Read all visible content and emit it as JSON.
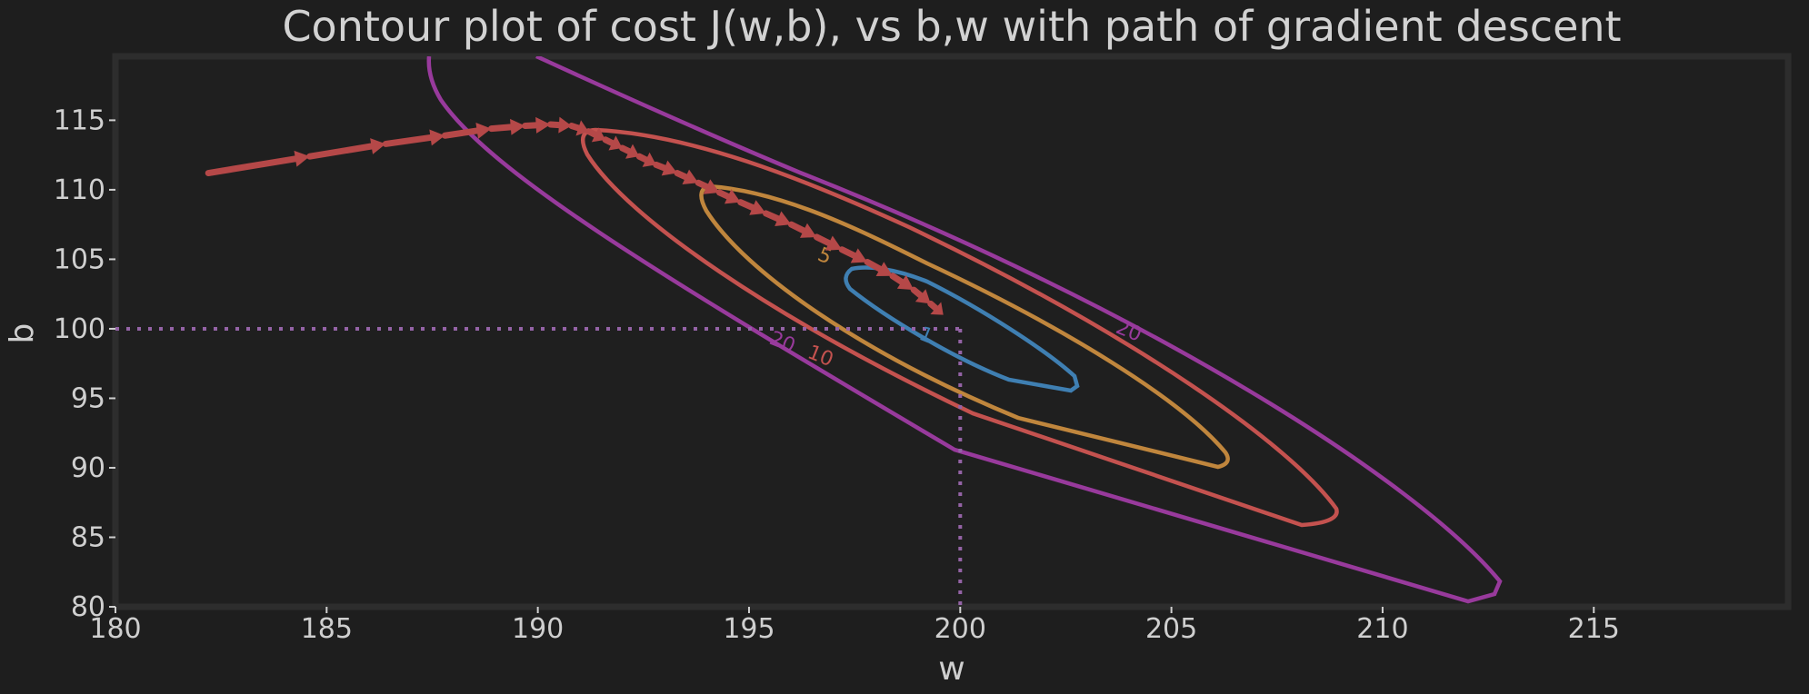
{
  "chart_data": {
    "type": "contour",
    "title": "Contour plot of cost J(w,b), vs b,w with path of gradient descent",
    "xlabel": "w",
    "ylabel": "b",
    "xlim": [
      180,
      219.6
    ],
    "ylim": [
      80,
      119.6
    ],
    "xticks": [
      180,
      185,
      190,
      195,
      200,
      205,
      210,
      215
    ],
    "yticks": [
      80,
      85,
      90,
      95,
      100,
      105,
      110,
      115
    ],
    "grid": false,
    "contours": [
      {
        "level": 1,
        "label": "1",
        "color": "#3f7fb2",
        "label_at": [
          199.2,
          99.6
        ]
      },
      {
        "level": 5,
        "label": "5",
        "color": "#c0863d",
        "label_at": [
          196.8,
          105.3
        ]
      },
      {
        "level": 10,
        "label": "10",
        "color": "#c4524f",
        "label_at": [
          196.7,
          98.1
        ]
      },
      {
        "level": 20,
        "label": "20",
        "color": "#983a9c",
        "label_at": [
          195.8,
          99.1
        ]
      },
      {
        "level": 20,
        "label": "20",
        "color": "#983a9c",
        "label_at": [
          204.0,
          99.9
        ]
      }
    ],
    "optimum": {
      "w": 200,
      "b": 100,
      "color": "#9463a6"
    },
    "path_color": "#b54848",
    "gradient_descent_path": [
      {
        "w": 182.2,
        "b": 111.2
      },
      {
        "w": 184.6,
        "b": 112.4
      },
      {
        "w": 186.4,
        "b": 113.3
      },
      {
        "w": 187.8,
        "b": 113.9
      },
      {
        "w": 188.9,
        "b": 114.4
      },
      {
        "w": 189.7,
        "b": 114.6
      },
      {
        "w": 190.3,
        "b": 114.7
      },
      {
        "w": 190.8,
        "b": 114.6
      },
      {
        "w": 191.2,
        "b": 114.2
      },
      {
        "w": 191.6,
        "b": 113.6
      },
      {
        "w": 192.0,
        "b": 113.0
      },
      {
        "w": 192.4,
        "b": 112.4
      },
      {
        "w": 192.8,
        "b": 111.8
      },
      {
        "w": 193.3,
        "b": 111.2
      },
      {
        "w": 193.8,
        "b": 110.5
      },
      {
        "w": 194.3,
        "b": 109.8
      },
      {
        "w": 194.8,
        "b": 109.1
      },
      {
        "w": 195.4,
        "b": 108.3
      },
      {
        "w": 196.0,
        "b": 107.5
      },
      {
        "w": 196.6,
        "b": 106.6
      },
      {
        "w": 197.2,
        "b": 105.7
      },
      {
        "w": 197.8,
        "b": 104.8
      },
      {
        "w": 198.4,
        "b": 103.8
      },
      {
        "w": 198.9,
        "b": 102.8
      },
      {
        "w": 199.3,
        "b": 101.8
      },
      {
        "w": 199.6,
        "b": 101.0
      }
    ]
  }
}
